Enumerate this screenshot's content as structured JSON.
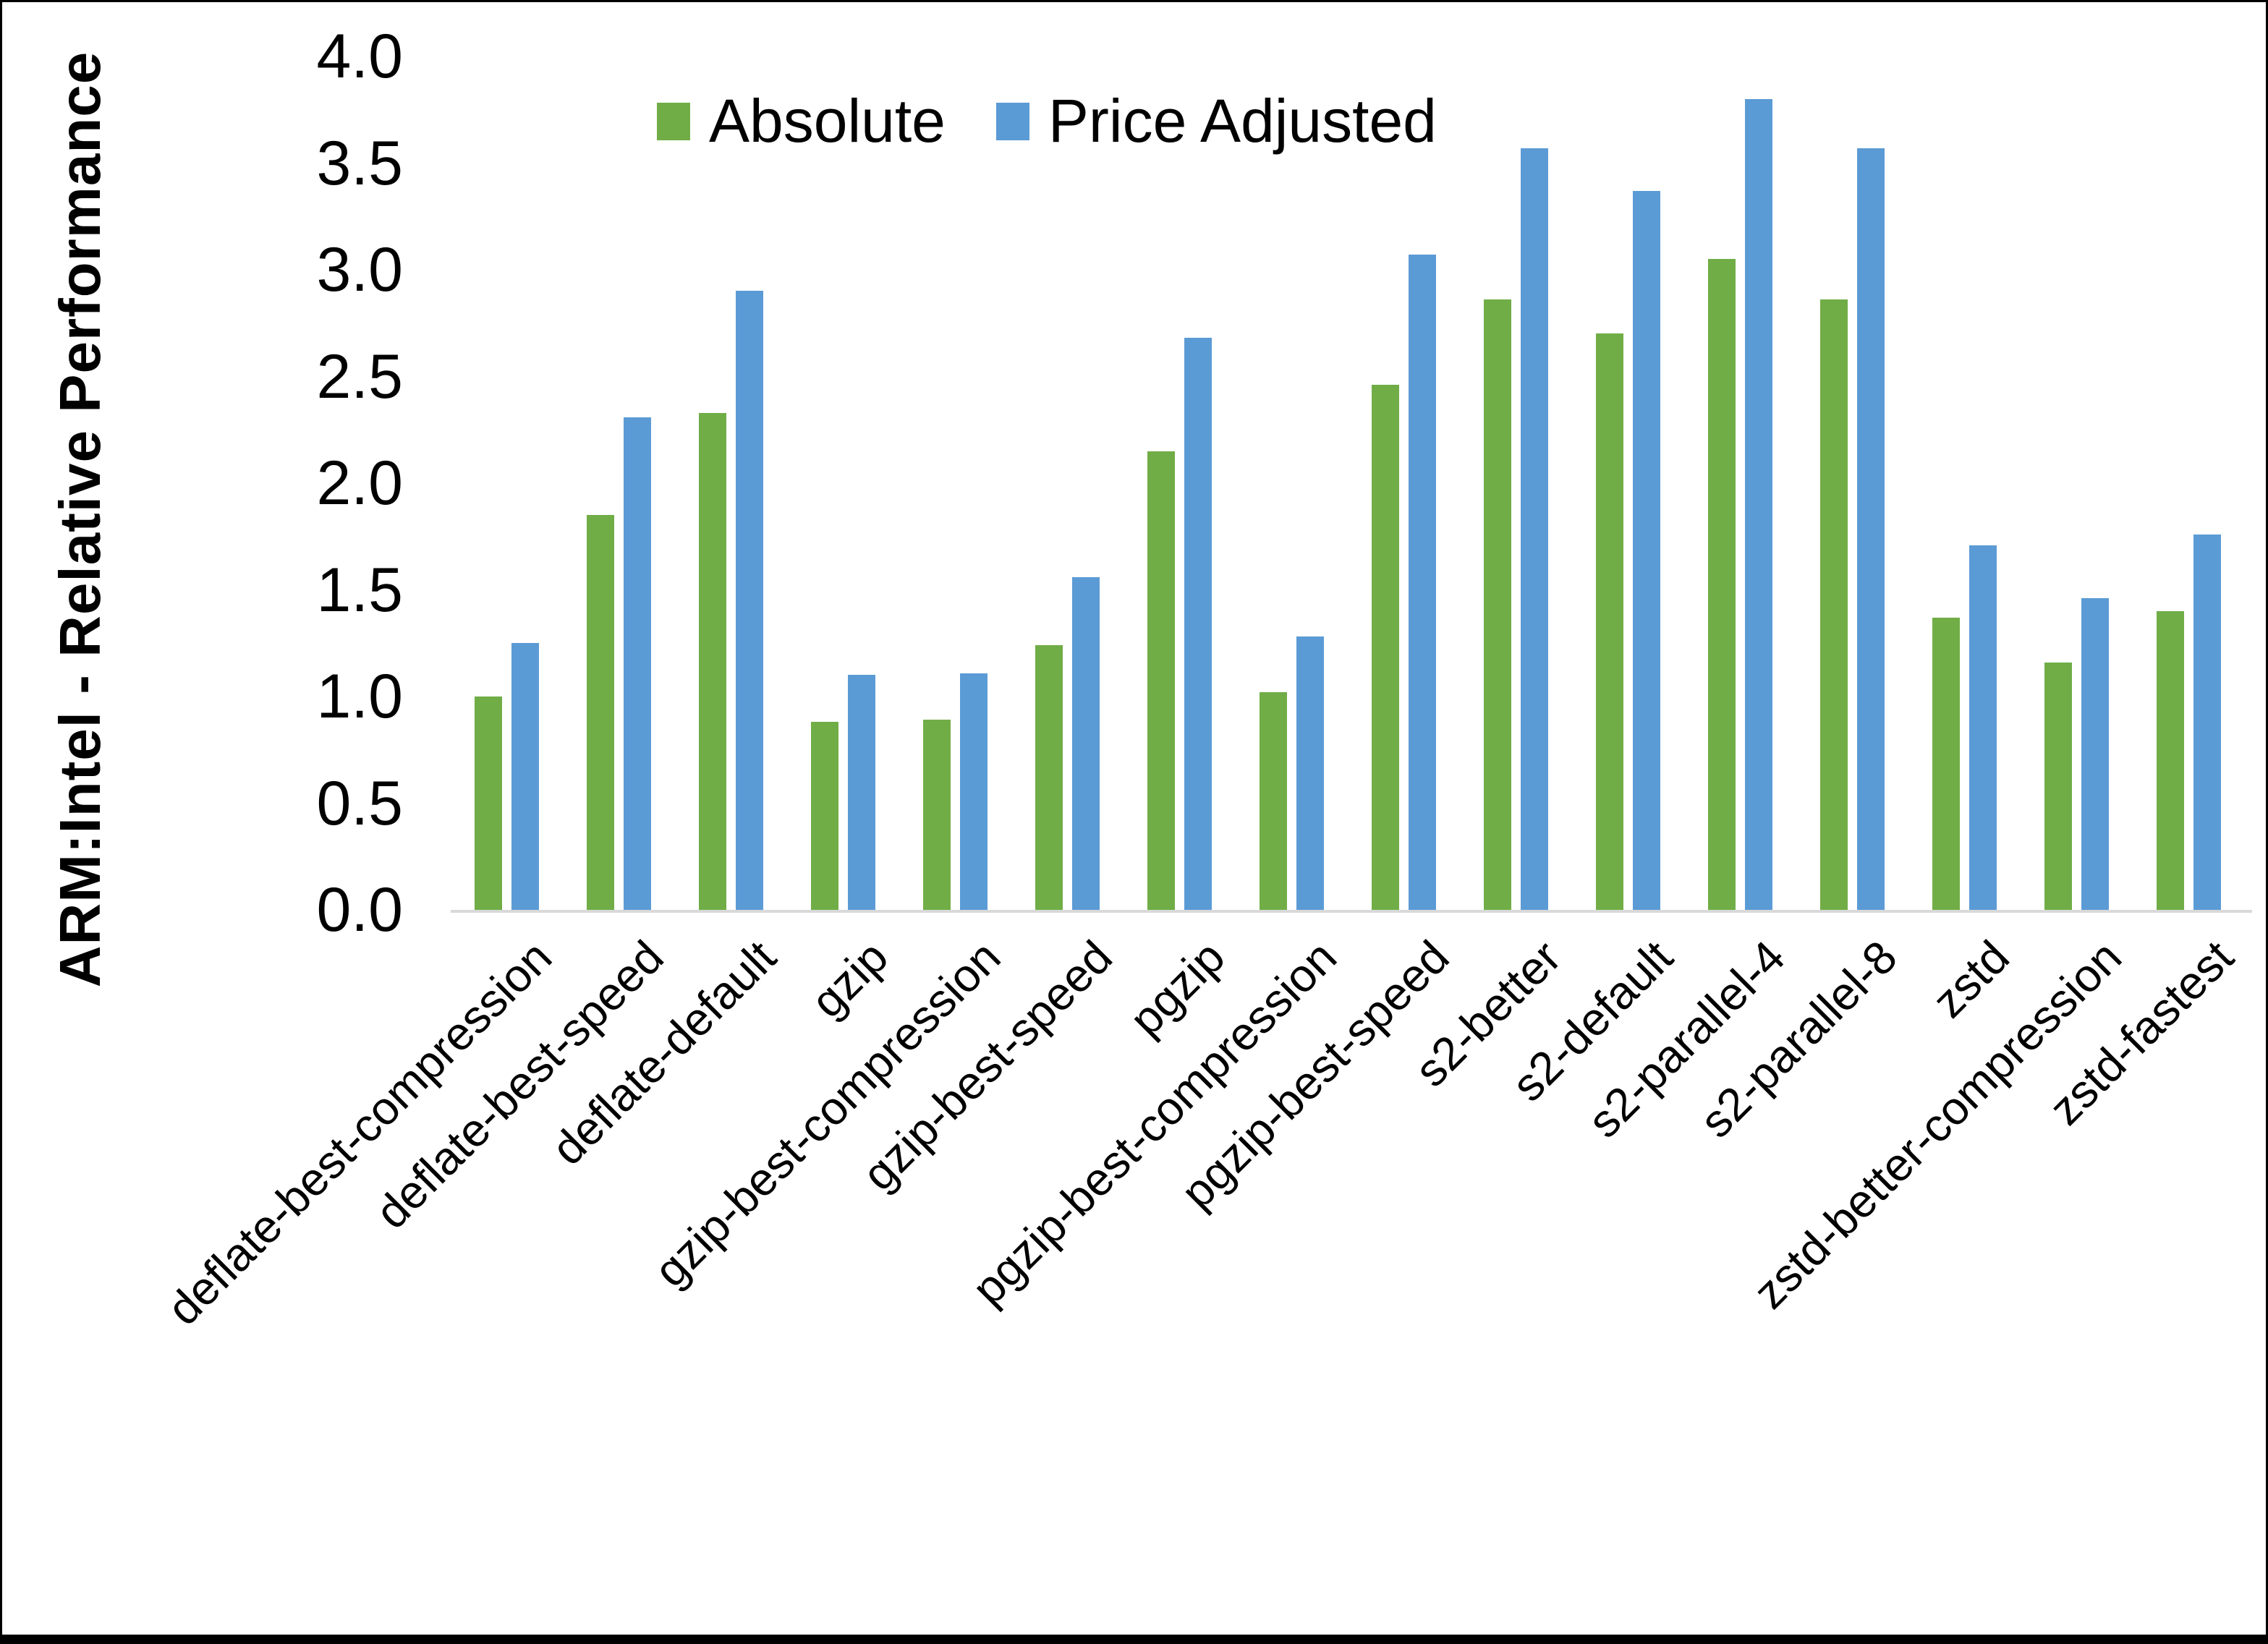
{
  "chart_data": {
    "type": "bar",
    "title": "",
    "ylabel": "ARM:Intel - Relative Performance",
    "xlabel": "",
    "ylim": [
      0.0,
      4.0
    ],
    "yticks": [
      "0.0",
      "0.5",
      "1.0",
      "1.5",
      "2.0",
      "2.5",
      "3.0",
      "3.5",
      "4.0"
    ],
    "ytick_values": [
      0.0,
      0.5,
      1.0,
      1.5,
      2.0,
      2.5,
      3.0,
      3.5,
      4.0
    ],
    "grid": false,
    "legend_position": "top",
    "axis_line_color": "#d9d9d9",
    "text_color": "#000000",
    "categories": [
      "deflate-best-compression",
      "deflate-best-speed",
      "deflate-default",
      "gzip",
      "gzip-best-compression",
      "gzip-best-speed",
      "pgzip",
      "pgzip-best-compression",
      "pgzip-best-speed",
      "s2-better",
      "s2-default",
      "s2-parallel-4",
      "s2-parallel-8",
      "zstd",
      "zstd-better-compression",
      "zstd-fastest"
    ],
    "series": [
      {
        "name": "Absolute",
        "color": "#70AD47",
        "values": [
          1.0,
          1.85,
          2.33,
          0.88,
          0.89,
          1.24,
          2.15,
          1.02,
          2.46,
          2.86,
          2.7,
          3.05,
          2.86,
          1.37,
          1.16,
          1.4
        ]
      },
      {
        "name": "Price Adjusted",
        "color": "#5B9BD5",
        "values": [
          1.25,
          2.31,
          2.9,
          1.1,
          1.11,
          1.56,
          2.68,
          1.28,
          3.07,
          3.57,
          3.37,
          3.8,
          3.57,
          1.71,
          1.46,
          1.76
        ]
      }
    ]
  }
}
